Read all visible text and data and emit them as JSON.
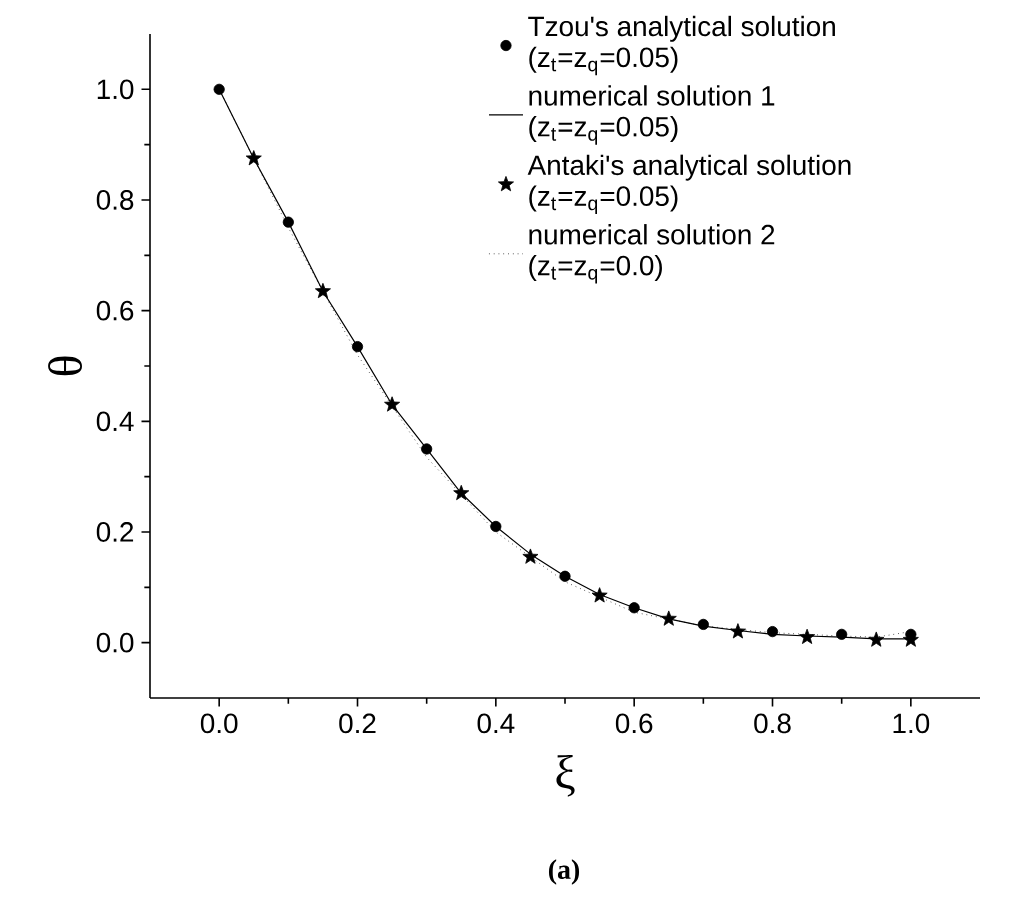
{
  "chart_data": {
    "type": "line",
    "xlabel": "ξ",
    "ylabel": "θ",
    "annotations": [
      "(a)"
    ],
    "xlim": [
      -0.1,
      1.1
    ],
    "ylim": [
      -0.1,
      1.1
    ],
    "xticks": [
      {
        "value": 0,
        "label": "0.0"
      },
      {
        "value": 0.2,
        "label": "0.2"
      },
      {
        "value": 0.4,
        "label": "0.4"
      },
      {
        "value": 0.6,
        "label": "0.6"
      },
      {
        "value": 0.8,
        "label": "0.8"
      },
      {
        "value": 1,
        "label": "1.0"
      }
    ],
    "yticks": [
      {
        "value": 0,
        "label": "0.0"
      },
      {
        "value": 0.2,
        "label": "0.2"
      },
      {
        "value": 0.4,
        "label": "0.4"
      },
      {
        "value": 0.6,
        "label": "0.6"
      },
      {
        "value": 0.8,
        "label": "0.8"
      },
      {
        "value": 1,
        "label": "1.0"
      }
    ],
    "grid": false,
    "legend": "top right",
    "series": [
      {
        "name": "Tzou's analytical solution (z$_{t}$=z$_{q}$=0.05)",
        "type": "scatter",
        "marker": "circle",
        "color": "#000000",
        "x": [
          0,
          0.1,
          0.2,
          0.3,
          0.4,
          0.5,
          0.6,
          0.7,
          0.8,
          0.9,
          1.0
        ],
        "values": [
          1.0,
          0.76,
          0.535,
          0.35,
          0.21,
          0.12,
          0.063,
          0.033,
          0.02,
          0.015,
          0.015
        ]
      },
      {
        "name": "numerical solution 1 (z$_{t}$=z$_{q}$=0.05)",
        "line_style": "solid",
        "color": "#000000",
        "x": [
          0,
          0.05,
          0.1,
          0.15,
          0.2,
          0.25,
          0.3,
          0.35,
          0.4,
          0.45,
          0.5,
          0.55,
          0.6,
          0.65,
          0.7,
          0.75,
          0.8,
          0.85,
          0.9,
          0.95,
          1.0
        ],
        "values": [
          1.0,
          0.875,
          0.76,
          0.635,
          0.535,
          0.43,
          0.35,
          0.27,
          0.21,
          0.16,
          0.12,
          0.087,
          0.063,
          0.043,
          0.03,
          0.022,
          0.015,
          0.012,
          0.01,
          0.007,
          0.007
        ]
      },
      {
        "name": "Antaki's analytical solution (z$_{t}$=z$_{q}$=0.05)",
        "type": "scatter",
        "marker": "star",
        "color": "#000000",
        "x": [
          0.05,
          0.15,
          0.25,
          0.35,
          0.45,
          0.55,
          0.65,
          0.75,
          0.85,
          0.95,
          1.0
        ],
        "values": [
          0.875,
          0.635,
          0.43,
          0.27,
          0.155,
          0.085,
          0.043,
          0.02,
          0.01,
          0.005,
          0.005
        ]
      },
      {
        "name": "numerical solution 2 (z$_{t}$=z$_{q}$=0.0)",
        "line_style": "dotted",
        "color": "#000000",
        "x": [
          0,
          0.1,
          0.2,
          0.3,
          0.4,
          0.5,
          0.6,
          0.7,
          0.8,
          0.9,
          0.95,
          1.0
        ],
        "values": [
          1.0,
          0.75,
          0.52,
          0.335,
          0.2,
          0.11,
          0.055,
          0.03,
          0.018,
          0.012,
          0.01,
          0.02
        ]
      }
    ]
  }
}
